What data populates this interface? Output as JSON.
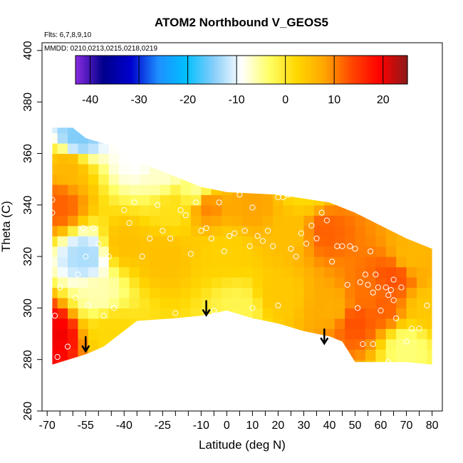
{
  "chart_data": {
    "type": "heatmap",
    "title": "ATOM2 Northbound V_GEOS5",
    "annotations": {
      "flights": "Flts: 6,7,8,9,10",
      "dates": "MMDD: 0210,0213,0215,0218,0219"
    },
    "xlabel": "Latitude (deg N)",
    "ylabel": "Theta (C)",
    "xlim": [
      -72,
      84
    ],
    "ylim": [
      260,
      403
    ],
    "x_ticks": [
      -70,
      -55,
      -40,
      -25,
      -10,
      0,
      10,
      20,
      30,
      40,
      50,
      60,
      70,
      80
    ],
    "x_tick_labels": [
      "-70",
      "-55",
      "-40",
      "-25",
      "-10",
      "0",
      "10",
      "20",
      "30",
      "40",
      "50",
      "60",
      "70",
      "80"
    ],
    "x_minor_ticks": [
      -65,
      -60,
      -50,
      -45,
      -35,
      -30,
      -20,
      -15,
      -5,
      5,
      15,
      25,
      35,
      45,
      55,
      65,
      75
    ],
    "y_ticks": [
      260,
      280,
      300,
      320,
      340,
      360,
      380,
      400
    ],
    "y_tick_labels": [
      "260",
      "280",
      "300",
      "320",
      "340",
      "360",
      "380",
      "400"
    ],
    "grid": false,
    "colorbar": {
      "min": -43,
      "max": 25,
      "ticks": [
        -40,
        -30,
        -20,
        -10,
        0,
        10,
        20
      ],
      "tick_labels": [
        "-40",
        "-30",
        "-20",
        "-10",
        "0",
        "10",
        "20"
      ],
      "colors": [
        "#8a2be2",
        "#00008b",
        "#0000cd",
        "#1e90ff",
        "#00bfff",
        "#87cefa",
        "#ffffff",
        "#ffff66",
        "#ffd700",
        "#ffa500",
        "#ff4500",
        "#ff0000",
        "#8b1a1a"
      ],
      "position": "top inside plot"
    },
    "data_domain": {
      "upper_boundary": [
        [
          -68,
          370
        ],
        [
          -60,
          370
        ],
        [
          -55,
          366
        ],
        [
          -45,
          363
        ],
        [
          -35,
          357
        ],
        [
          -20,
          351
        ],
        [
          -10,
          347
        ],
        [
          0,
          345
        ],
        [
          20,
          344
        ],
        [
          40,
          341
        ],
        [
          50,
          337
        ],
        [
          60,
          332
        ],
        [
          70,
          327
        ],
        [
          80,
          323
        ]
      ],
      "lower_boundary": [
        [
          -68,
          278
        ],
        [
          -55,
          282
        ],
        [
          -48,
          285
        ],
        [
          -35,
          295
        ],
        [
          -20,
          296
        ],
        [
          -10,
          297
        ],
        [
          0,
          299
        ],
        [
          10,
          296
        ],
        [
          20,
          294
        ],
        [
          30,
          291
        ],
        [
          40,
          289
        ],
        [
          45,
          287
        ],
        [
          50,
          279
        ],
        [
          62,
          279
        ],
        [
          70,
          279
        ],
        [
          80,
          278
        ]
      ]
    },
    "field_features": [
      {
        "lat": -68,
        "theta": 290,
        "value": 20
      },
      {
        "lat": -66,
        "theta": 340,
        "value": 12
      },
      {
        "lat": -62,
        "theta": 355,
        "value": 6
      },
      {
        "lat": -58,
        "theta": 366,
        "value": -15
      },
      {
        "lat": -55,
        "theta": 320,
        "value": -13
      },
      {
        "lat": -50,
        "theta": 305,
        "value": -6
      },
      {
        "lat": -45,
        "theta": 292,
        "value": 2
      },
      {
        "lat": -40,
        "theta": 325,
        "value": 5
      },
      {
        "lat": -35,
        "theta": 358,
        "value": -9
      },
      {
        "lat": -25,
        "theta": 352,
        "value": -7
      },
      {
        "lat": -25,
        "theta": 320,
        "value": 5
      },
      {
        "lat": -20,
        "theta": 340,
        "value": 1
      },
      {
        "lat": -12,
        "theta": 345,
        "value": -5
      },
      {
        "lat": -8,
        "theta": 340,
        "value": 10
      },
      {
        "lat": 0,
        "theta": 322,
        "value": 3
      },
      {
        "lat": 5,
        "theta": 300,
        "value": -2
      },
      {
        "lat": 10,
        "theta": 340,
        "value": 8
      },
      {
        "lat": 20,
        "theta": 305,
        "value": 4
      },
      {
        "lat": 25,
        "theta": 330,
        "value": 5
      },
      {
        "lat": 30,
        "theta": 345,
        "value": 2
      },
      {
        "lat": 38,
        "theta": 330,
        "value": 12
      },
      {
        "lat": 42,
        "theta": 300,
        "value": 7
      },
      {
        "lat": 50,
        "theta": 295,
        "value": 13
      },
      {
        "lat": 55,
        "theta": 305,
        "value": 11
      },
      {
        "lat": 60,
        "theta": 300,
        "value": 12
      },
      {
        "lat": 65,
        "theta": 312,
        "value": 13
      },
      {
        "lat": 70,
        "theta": 285,
        "value": -4
      },
      {
        "lat": 72,
        "theta": 320,
        "value": 6
      },
      {
        "lat": 78,
        "theta": 300,
        "value": 4
      }
    ],
    "sample_points": [
      [
        -68,
        342
      ],
      [
        -68,
        337
      ],
      [
        -67,
        297
      ],
      [
        -66,
        281
      ],
      [
        -65,
        308
      ],
      [
        -62,
        285
      ],
      [
        -59,
        304
      ],
      [
        -58,
        313
      ],
      [
        -56,
        331
      ],
      [
        -55,
        320
      ],
      [
        -54,
        301
      ],
      [
        -52,
        331
      ],
      [
        -50,
        325
      ],
      [
        -48,
        297
      ],
      [
        -46,
        320
      ],
      [
        -44,
        300
      ],
      [
        -40,
        338
      ],
      [
        -38,
        333
      ],
      [
        -36,
        341
      ],
      [
        -33,
        320
      ],
      [
        -30,
        327
      ],
      [
        -27,
        340
      ],
      [
        -25,
        330
      ],
      [
        -22,
        327
      ],
      [
        -20,
        298
      ],
      [
        -18,
        338
      ],
      [
        -16,
        336
      ],
      [
        -14,
        321
      ],
      [
        -12,
        341
      ],
      [
        -10,
        330
      ],
      [
        -8,
        331
      ],
      [
        -6,
        327
      ],
      [
        -3,
        341
      ],
      [
        -1,
        322
      ],
      [
        1,
        328
      ],
      [
        3,
        329
      ],
      [
        5,
        344
      ],
      [
        7,
        330
      ],
      [
        9,
        324
      ],
      [
        10,
        339
      ],
      [
        12,
        328
      ],
      [
        14,
        326
      ],
      [
        16,
        330
      ],
      [
        18,
        324
      ],
      [
        20,
        343
      ],
      [
        22,
        343
      ],
      [
        24,
        344
      ],
      [
        25,
        323
      ],
      [
        27,
        320
      ],
      [
        29,
        329
      ],
      [
        31,
        325
      ],
      [
        33,
        332
      ],
      [
        35,
        327
      ],
      [
        37,
        337
      ],
      [
        39,
        334
      ],
      [
        41,
        318
      ],
      [
        43,
        324
      ],
      [
        45,
        324
      ],
      [
        47,
        309
      ],
      [
        48,
        324
      ],
      [
        50,
        323
      ],
      [
        51,
        300
      ],
      [
        52,
        310
      ],
      [
        54,
        313
      ],
      [
        55,
        309
      ],
      [
        56,
        322
      ],
      [
        57,
        306
      ],
      [
        58,
        313
      ],
      [
        59,
        308
      ],
      [
        60,
        299
      ],
      [
        62,
        308
      ],
      [
        63,
        305
      ],
      [
        64,
        307
      ],
      [
        65,
        311
      ],
      [
        65,
        303
      ],
      [
        66,
        296
      ],
      [
        68,
        308
      ],
      [
        70,
        287
      ],
      [
        72,
        292
      ],
      [
        75,
        292
      ],
      [
        78,
        301
      ],
      [
        53,
        286
      ],
      [
        57,
        286
      ],
      [
        63,
        279
      ],
      [
        20,
        301
      ],
      [
        10,
        300
      ],
      [
        0,
        297
      ],
      [
        -5,
        299
      ]
    ],
    "arrows": [
      {
        "lat": -55,
        "theta": 289
      },
      {
        "lat": -8,
        "theta": 303
      },
      {
        "lat": 38,
        "theta": 292
      }
    ]
  }
}
